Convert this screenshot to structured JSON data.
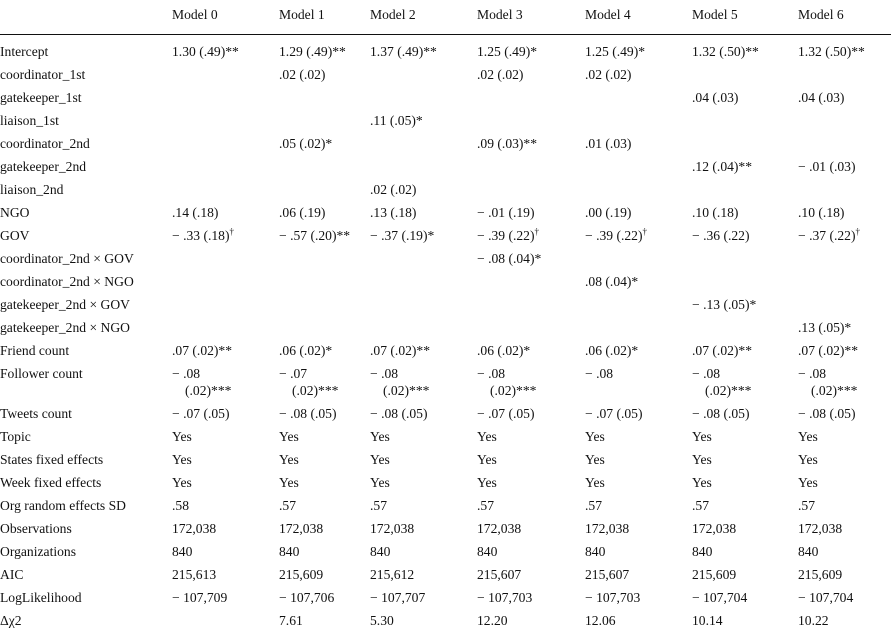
{
  "header": [
    "",
    "Model 0",
    "Model 1",
    "Model 2",
    "Model 3",
    "Model 4",
    "Model 5",
    "Model 6"
  ],
  "rows": [
    {
      "label": "Intercept",
      "cells": [
        {
          "v": "1.30 (.49)**"
        },
        {
          "v": "1.29 (.49)**"
        },
        {
          "v": "1.37 (.49)**"
        },
        {
          "v": "1.25 (.49)*"
        },
        {
          "v": "1.25 (.49)*"
        },
        {
          "v": "1.32 (.50)**"
        },
        {
          "v": "1.32 (.50)**"
        }
      ]
    },
    {
      "label": "coordinator_1st",
      "cells": [
        {
          "v": ""
        },
        {
          "v": ".02 (.02)"
        },
        {
          "v": ""
        },
        {
          "v": ".02 (.02)"
        },
        {
          "v": ".02 (.02)"
        },
        {
          "v": ""
        },
        {
          "v": ""
        }
      ]
    },
    {
      "label": "gatekeeper_1st",
      "cells": [
        {
          "v": ""
        },
        {
          "v": ""
        },
        {
          "v": ""
        },
        {
          "v": ""
        },
        {
          "v": ""
        },
        {
          "v": ".04 (.03)"
        },
        {
          "v": ".04 (.03)"
        }
      ]
    },
    {
      "label": "liaison_1st",
      "cells": [
        {
          "v": ""
        },
        {
          "v": ""
        },
        {
          "v": ".11 (.05)*"
        },
        {
          "v": ""
        },
        {
          "v": ""
        },
        {
          "v": ""
        },
        {
          "v": ""
        }
      ]
    },
    {
      "label": "coordinator_2nd",
      "cells": [
        {
          "v": ""
        },
        {
          "v": ".05 (.02)*"
        },
        {
          "v": ""
        },
        {
          "v": ".09 (.03)**"
        },
        {
          "v": ".01 (.03)"
        },
        {
          "v": ""
        },
        {
          "v": ""
        }
      ]
    },
    {
      "label": "gatekeeper_2nd",
      "cells": [
        {
          "v": ""
        },
        {
          "v": ""
        },
        {
          "v": ""
        },
        {
          "v": ""
        },
        {
          "v": ""
        },
        {
          "v": ".12 (.04)**"
        },
        {
          "v": "− .01 (.03)"
        }
      ]
    },
    {
      "label": "liaison_2nd",
      "cells": [
        {
          "v": ""
        },
        {
          "v": ""
        },
        {
          "v": ".02 (.02)"
        },
        {
          "v": ""
        },
        {
          "v": ""
        },
        {
          "v": ""
        },
        {
          "v": ""
        }
      ]
    },
    {
      "label": "NGO",
      "cells": [
        {
          "v": ".14 (.18)"
        },
        {
          "v": ".06 (.19)"
        },
        {
          "v": ".13 (.18)"
        },
        {
          "v": "− .01 (.19)"
        },
        {
          "v": ".00 (.19)"
        },
        {
          "v": ".10 (.18)"
        },
        {
          "v": ".10 (.18)"
        }
      ]
    },
    {
      "label": "GOV",
      "cells": [
        {
          "v": "− .33 (.18)",
          "sup": "†"
        },
        {
          "v": "− .57 (.20)**"
        },
        {
          "v": "− .37 (.19)*"
        },
        {
          "v": "− .39 (.22)",
          "sup": "†"
        },
        {
          "v": "− .39 (.22)",
          "sup": "†"
        },
        {
          "v": "− .36 (.22)"
        },
        {
          "v": "− .37 (.22)",
          "sup": "†"
        }
      ]
    },
    {
      "label": "coordinator_2nd × GOV",
      "cells": [
        {
          "v": ""
        },
        {
          "v": ""
        },
        {
          "v": ""
        },
        {
          "v": "− .08 (.04)*"
        },
        {
          "v": ""
        },
        {
          "v": ""
        },
        {
          "v": ""
        }
      ]
    },
    {
      "label": "coordinator_2nd × NGO",
      "cells": [
        {
          "v": ""
        },
        {
          "v": ""
        },
        {
          "v": ""
        },
        {
          "v": ""
        },
        {
          "v": ".08 (.04)*"
        },
        {
          "v": ""
        },
        {
          "v": ""
        }
      ]
    },
    {
      "label": "gatekeeper_2nd × GOV",
      "cells": [
        {
          "v": ""
        },
        {
          "v": ""
        },
        {
          "v": ""
        },
        {
          "v": ""
        },
        {
          "v": ""
        },
        {
          "v": "− .13 (.05)*"
        },
        {
          "v": ""
        }
      ]
    },
    {
      "label": "gatekeeper_2nd × NGO",
      "cells": [
        {
          "v": ""
        },
        {
          "v": ""
        },
        {
          "v": ""
        },
        {
          "v": ""
        },
        {
          "v": ""
        },
        {
          "v": ""
        },
        {
          "v": ".13 (.05)*"
        }
      ]
    },
    {
      "label": "Friend count",
      "cells": [
        {
          "v": ".07 (.02)**"
        },
        {
          "v": ".06 (.02)*"
        },
        {
          "v": ".07 (.02)**"
        },
        {
          "v": ".06 (.02)*"
        },
        {
          "v": ".06 (.02)*"
        },
        {
          "v": ".07 (.02)**"
        },
        {
          "v": ".07 (.02)**"
        }
      ]
    },
    {
      "label": "Follower count",
      "wrap": true,
      "cells": [
        {
          "v": "− .08",
          "v2": "(.02)***"
        },
        {
          "v": "− .07",
          "v2": "(.02)***"
        },
        {
          "v": "− .08",
          "v2": "(.02)***"
        },
        {
          "v": "− .08",
          "v2": "(.02)***"
        },
        {
          "v": "− .08"
        },
        {
          "v": "− .08",
          "v2": "(.02)***"
        },
        {
          "v": "− .08",
          "v2": "(.02)***"
        }
      ]
    },
    {
      "label": "Tweets count",
      "cells": [
        {
          "v": "− .07 (.05)"
        },
        {
          "v": "− .08 (.05)"
        },
        {
          "v": "− .08 (.05)"
        },
        {
          "v": "− .07 (.05)"
        },
        {
          "v": "− .07 (.05)"
        },
        {
          "v": "− .08 (.05)"
        },
        {
          "v": "− .08 (.05)"
        }
      ]
    },
    {
      "label": "Topic",
      "cells": [
        {
          "v": "Yes"
        },
        {
          "v": "Yes"
        },
        {
          "v": "Yes"
        },
        {
          "v": "Yes"
        },
        {
          "v": "Yes"
        },
        {
          "v": "Yes"
        },
        {
          "v": "Yes"
        }
      ]
    },
    {
      "label": "States fixed effects",
      "cells": [
        {
          "v": "Yes"
        },
        {
          "v": "Yes"
        },
        {
          "v": "Yes"
        },
        {
          "v": "Yes"
        },
        {
          "v": "Yes"
        },
        {
          "v": "Yes"
        },
        {
          "v": "Yes"
        }
      ]
    },
    {
      "label": "Week fixed effects",
      "cells": [
        {
          "v": "Yes"
        },
        {
          "v": "Yes"
        },
        {
          "v": "Yes"
        },
        {
          "v": "Yes"
        },
        {
          "v": "Yes"
        },
        {
          "v": "Yes"
        },
        {
          "v": "Yes"
        }
      ]
    },
    {
      "label": "Org random effects SD",
      "cells": [
        {
          "v": ".58"
        },
        {
          "v": ".57"
        },
        {
          "v": ".57"
        },
        {
          "v": ".57"
        },
        {
          "v": ".57"
        },
        {
          "v": ".57"
        },
        {
          "v": ".57"
        }
      ]
    },
    {
      "label": "Observations",
      "cells": [
        {
          "v": "172,038"
        },
        {
          "v": "172,038"
        },
        {
          "v": "172,038"
        },
        {
          "v": "172,038"
        },
        {
          "v": "172,038"
        },
        {
          "v": "172,038"
        },
        {
          "v": "172,038"
        }
      ]
    },
    {
      "label": "Organizations",
      "cells": [
        {
          "v": "840"
        },
        {
          "v": "840"
        },
        {
          "v": "840"
        },
        {
          "v": "840"
        },
        {
          "v": "840"
        },
        {
          "v": "840"
        },
        {
          "v": "840"
        }
      ]
    },
    {
      "label": "AIC",
      "cells": [
        {
          "v": "215,613"
        },
        {
          "v": "215,609"
        },
        {
          "v": "215,612"
        },
        {
          "v": "215,607"
        },
        {
          "v": "215,607"
        },
        {
          "v": "215,609"
        },
        {
          "v": "215,609"
        }
      ]
    },
    {
      "label": "LogLikelihood",
      "cells": [
        {
          "v": "− 107,709"
        },
        {
          "v": "− 107,706"
        },
        {
          "v": "− 107,707"
        },
        {
          "v": "− 107,703"
        },
        {
          "v": "− 107,703"
        },
        {
          "v": "− 107,704"
        },
        {
          "v": "− 107,704"
        }
      ]
    },
    {
      "label": "Δχ2",
      "cells": [
        {
          "v": ""
        },
        {
          "v": "7.61"
        },
        {
          "v": "5.30"
        },
        {
          "v": "12.20"
        },
        {
          "v": "12.06"
        },
        {
          "v": "10.14"
        },
        {
          "v": "10.22"
        }
      ]
    }
  ]
}
